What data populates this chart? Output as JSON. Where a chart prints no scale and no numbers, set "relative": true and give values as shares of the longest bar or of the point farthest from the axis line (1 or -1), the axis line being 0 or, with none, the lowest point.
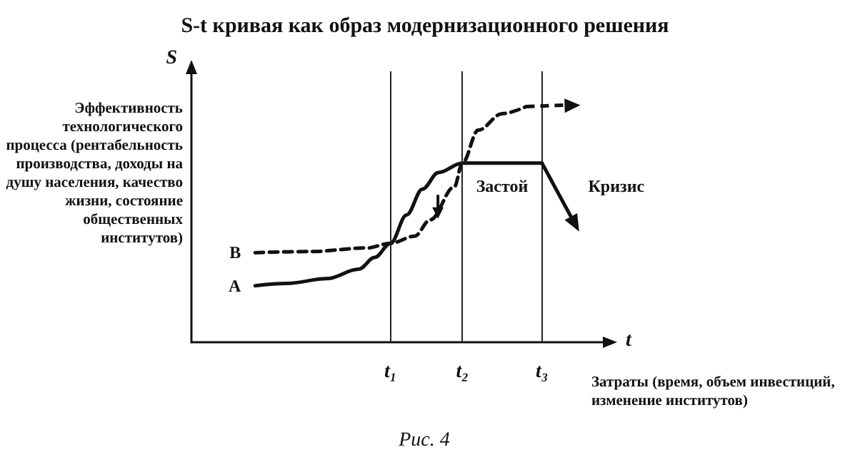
{
  "chart_data": {
    "type": "line",
    "title": "S-t кривая как образ модернизационного решения",
    "xlabel": "Затраты (время, объем инвестиций, изменение институтов)",
    "ylabel": "Эффективность технологического процесса (рентабельность производства, доходы на душу населения, качество жизни, состояние общественных институтов)",
    "relative": true,
    "marker": "none",
    "categories": [
      null,
      null,
      null,
      null,
      null,
      null,
      null,
      null,
      null,
      null,
      null,
      null,
      null,
      null,
      null,
      null,
      null,
      null,
      null,
      null,
      null,
      null,
      null,
      null,
      null,
      "t₁",
      null,
      null,
      null,
      null,
      null,
      null,
      null,
      null,
      "t₂",
      null,
      null,
      null,
      null,
      null,
      null,
      null,
      null,
      null,
      "t₃",
      null,
      null,
      null,
      null,
      null,
      null,
      null,
      null
    ],
    "ref_lines": [
      {
        "axis": "x",
        "value": "t₁"
      },
      {
        "axis": "x",
        "value": "t₂"
      },
      {
        "axis": "x",
        "value": "t₃"
      }
    ],
    "series": [
      {
        "name": "A",
        "color": "#111111",
        "line_style": "solid",
        "values": [
          null,
          null,
          null,
          null,
          null,
          null,
          null,
          null,
          0.24,
          null,
          null,
          null,
          0.25,
          null,
          null,
          null,
          null,
          0.27,
          null,
          null,
          null,
          0.31,
          null,
          0.36,
          null,
          0.42,
          null,
          0.54,
          null,
          0.65,
          null,
          0.72,
          null,
          null,
          0.76,
          null,
          null,
          null,
          null,
          null,
          null,
          null,
          null,
          null,
          0.76,
          null,
          null,
          null,
          null,
          null,
          null,
          null,
          null
        ]
      },
      {
        "name": "B",
        "color": "#111111",
        "line_style": "dashed",
        "values": [
          null,
          null,
          null,
          null,
          null,
          null,
          null,
          null,
          0.38,
          null,
          null,
          null,
          null,
          null,
          null,
          0.385,
          null,
          null,
          null,
          null,
          null,
          null,
          0.4,
          null,
          null,
          0.42,
          null,
          null,
          0.45,
          null,
          0.52,
          null,
          null,
          0.66,
          0.76,
          null,
          0.9,
          null,
          null,
          0.97,
          null,
          null,
          1,
          null,
          null,
          null,
          null,
          null,
          null,
          null,
          null,
          null,
          null
        ]
      }
    ],
    "annotations": [
      "S",
      "t",
      "Рис. 4",
      "Застой",
      "Кризис"
    ]
  }
}
